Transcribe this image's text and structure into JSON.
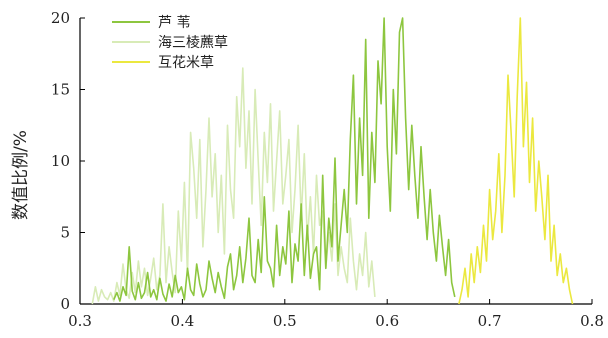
{
  "chart_data": {
    "type": "line",
    "title": "",
    "xlabel": "",
    "ylabel": "数值比例/%",
    "xlim": [
      0.3,
      0.8
    ],
    "ylim": [
      0,
      20
    ],
    "xticks": [
      "0.3",
      "0.4",
      "0.5",
      "0.6",
      "0.7",
      "0.8"
    ],
    "yticks": [
      "0",
      "5",
      "10",
      "15",
      "20"
    ],
    "grid": false,
    "legend_position": "top-left",
    "series": [
      {
        "name": "芦 苇",
        "color": "#8dc63f",
        "x": [
          0.333,
          0.336,
          0.339,
          0.342,
          0.345,
          0.348,
          0.351,
          0.354,
          0.357,
          0.36,
          0.363,
          0.366,
          0.369,
          0.372,
          0.375,
          0.378,
          0.381,
          0.384,
          0.387,
          0.39,
          0.393,
          0.396,
          0.399,
          0.402,
          0.405,
          0.408,
          0.411,
          0.414,
          0.417,
          0.42,
          0.423,
          0.426,
          0.429,
          0.432,
          0.435,
          0.438,
          0.441,
          0.444,
          0.447,
          0.45,
          0.453,
          0.456,
          0.459,
          0.462,
          0.465,
          0.468,
          0.471,
          0.474,
          0.477,
          0.48,
          0.483,
          0.486,
          0.489,
          0.492,
          0.495,
          0.498,
          0.501,
          0.504,
          0.507,
          0.51,
          0.513,
          0.516,
          0.519,
          0.522,
          0.525,
          0.528,
          0.531,
          0.534,
          0.537,
          0.54,
          0.543,
          0.546,
          0.549,
          0.552,
          0.555,
          0.558,
          0.561,
          0.564,
          0.567,
          0.57,
          0.573,
          0.576,
          0.579,
          0.582,
          0.585,
          0.588,
          0.591,
          0.594,
          0.597,
          0.6,
          0.603,
          0.606,
          0.609,
          0.612,
          0.615,
          0.618,
          0.621,
          0.624,
          0.627,
          0.63,
          0.633,
          0.636,
          0.639,
          0.642,
          0.645,
          0.648,
          0.651,
          0.654,
          0.657,
          0.66,
          0.663,
          0.666
        ],
        "values": [
          0.3,
          0.8,
          0.2,
          1.2,
          0.6,
          4.0,
          0.9,
          0.3,
          1.5,
          0.4,
          0.8,
          2.2,
          0.5,
          1.0,
          0.3,
          1.8,
          0.7,
          0.2,
          1.4,
          0.5,
          2.0,
          0.8,
          1.2,
          0.3,
          2.5,
          1.0,
          0.6,
          2.8,
          1.4,
          0.5,
          1.0,
          3.0,
          1.8,
          0.8,
          2.2,
          1.2,
          0.4,
          2.6,
          3.5,
          1.0,
          2.0,
          4.0,
          1.5,
          3.2,
          6.0,
          2.0,
          1.5,
          4.5,
          2.2,
          7.5,
          3.0,
          2.5,
          1.2,
          5.5,
          2.0,
          4.0,
          2.8,
          6.5,
          1.5,
          4.2,
          3.0,
          7.0,
          2.0,
          5.5,
          1.8,
          3.5,
          4.0,
          1.0,
          9.0,
          2.5,
          6.0,
          4.0,
          10.2,
          3.0,
          5.5,
          8.0,
          5.0,
          11.5,
          16.0,
          7.0,
          13.0,
          9.0,
          18.5,
          6.0,
          12.0,
          8.5,
          17.0,
          14.0,
          20.0,
          11.0,
          6.5,
          15.0,
          10.5,
          19.0,
          20.0,
          13.0,
          8.0,
          12.5,
          9.0,
          6.0,
          11.0,
          7.5,
          4.5,
          8.0,
          5.0,
          3.0,
          6.2,
          4.0,
          2.0,
          4.5,
          1.5,
          0.5
        ],
        "_note": ""
      },
      {
        "name": "海三棱藨草",
        "color": "#d8ebb7",
        "x": [
          0.312,
          0.315,
          0.318,
          0.321,
          0.324,
          0.327,
          0.33,
          0.333,
          0.336,
          0.339,
          0.342,
          0.345,
          0.348,
          0.351,
          0.354,
          0.357,
          0.36,
          0.363,
          0.366,
          0.369,
          0.372,
          0.375,
          0.378,
          0.381,
          0.384,
          0.387,
          0.39,
          0.393,
          0.396,
          0.399,
          0.402,
          0.405,
          0.408,
          0.411,
          0.414,
          0.417,
          0.42,
          0.423,
          0.426,
          0.429,
          0.432,
          0.435,
          0.438,
          0.441,
          0.444,
          0.447,
          0.45,
          0.453,
          0.456,
          0.459,
          0.462,
          0.465,
          0.468,
          0.471,
          0.474,
          0.477,
          0.48,
          0.483,
          0.486,
          0.489,
          0.492,
          0.495,
          0.498,
          0.501,
          0.504,
          0.507,
          0.51,
          0.513,
          0.516,
          0.519,
          0.522,
          0.525,
          0.528,
          0.531,
          0.534,
          0.537,
          0.54,
          0.543,
          0.546,
          0.549,
          0.552,
          0.555,
          0.558,
          0.561,
          0.564,
          0.567,
          0.57,
          0.573,
          0.576,
          0.579,
          0.582,
          0.585,
          0.588
        ],
        "values": [
          0.0,
          1.2,
          0.2,
          1.0,
          0.5,
          0.3,
          0.8,
          0.2,
          1.5,
          0.6,
          2.8,
          1.0,
          0.4,
          2.2,
          0.8,
          3.0,
          1.2,
          2.5,
          0.6,
          1.8,
          3.2,
          1.0,
          2.0,
          7.0,
          1.5,
          4.0,
          2.2,
          0.8,
          6.5,
          3.0,
          8.5,
          2.0,
          12.0,
          9.5,
          6.0,
          11.5,
          4.0,
          8.0,
          13.0,
          7.5,
          10.5,
          5.0,
          9.0,
          3.5,
          12.5,
          8.0,
          6.0,
          14.5,
          11.0,
          16.5,
          9.5,
          13.5,
          7.0,
          15.0,
          10.0,
          5.5,
          12.0,
          8.5,
          14.0,
          6.5,
          10.0,
          13.5,
          7.0,
          9.0,
          11.5,
          5.0,
          8.0,
          12.5,
          6.0,
          10.5,
          4.5,
          7.5,
          3.5,
          9.0,
          5.5,
          6.5,
          2.5,
          5.0,
          3.0,
          7.0,
          2.0,
          4.0,
          2.5,
          1.5,
          6.0,
          3.0,
          1.0,
          3.5,
          2.0,
          5.0,
          1.2,
          3.0,
          0.5
        ]
      },
      {
        "name": "互花米草",
        "color": "#ebe83f",
        "x": [
          0.67,
          0.673,
          0.676,
          0.679,
          0.682,
          0.685,
          0.688,
          0.691,
          0.694,
          0.697,
          0.7,
          0.703,
          0.706,
          0.709,
          0.712,
          0.715,
          0.718,
          0.721,
          0.724,
          0.727,
          0.73,
          0.733,
          0.736,
          0.739,
          0.742,
          0.745,
          0.748,
          0.751,
          0.754,
          0.757,
          0.76,
          0.763,
          0.766,
          0.769,
          0.772,
          0.775,
          0.778,
          0.781
        ],
        "values": [
          0.0,
          1.0,
          2.5,
          0.5,
          3.5,
          1.5,
          4.0,
          2.2,
          5.5,
          3.0,
          8.0,
          4.5,
          6.5,
          10.5,
          5.0,
          9.0,
          16.0,
          12.0,
          7.5,
          14.5,
          20.0,
          11.0,
          15.5,
          8.5,
          13.0,
          6.5,
          10.0,
          7.5,
          4.5,
          9.0,
          3.0,
          5.5,
          2.0,
          3.5,
          1.5,
          2.5,
          1.0,
          0.0
        ]
      }
    ]
  }
}
